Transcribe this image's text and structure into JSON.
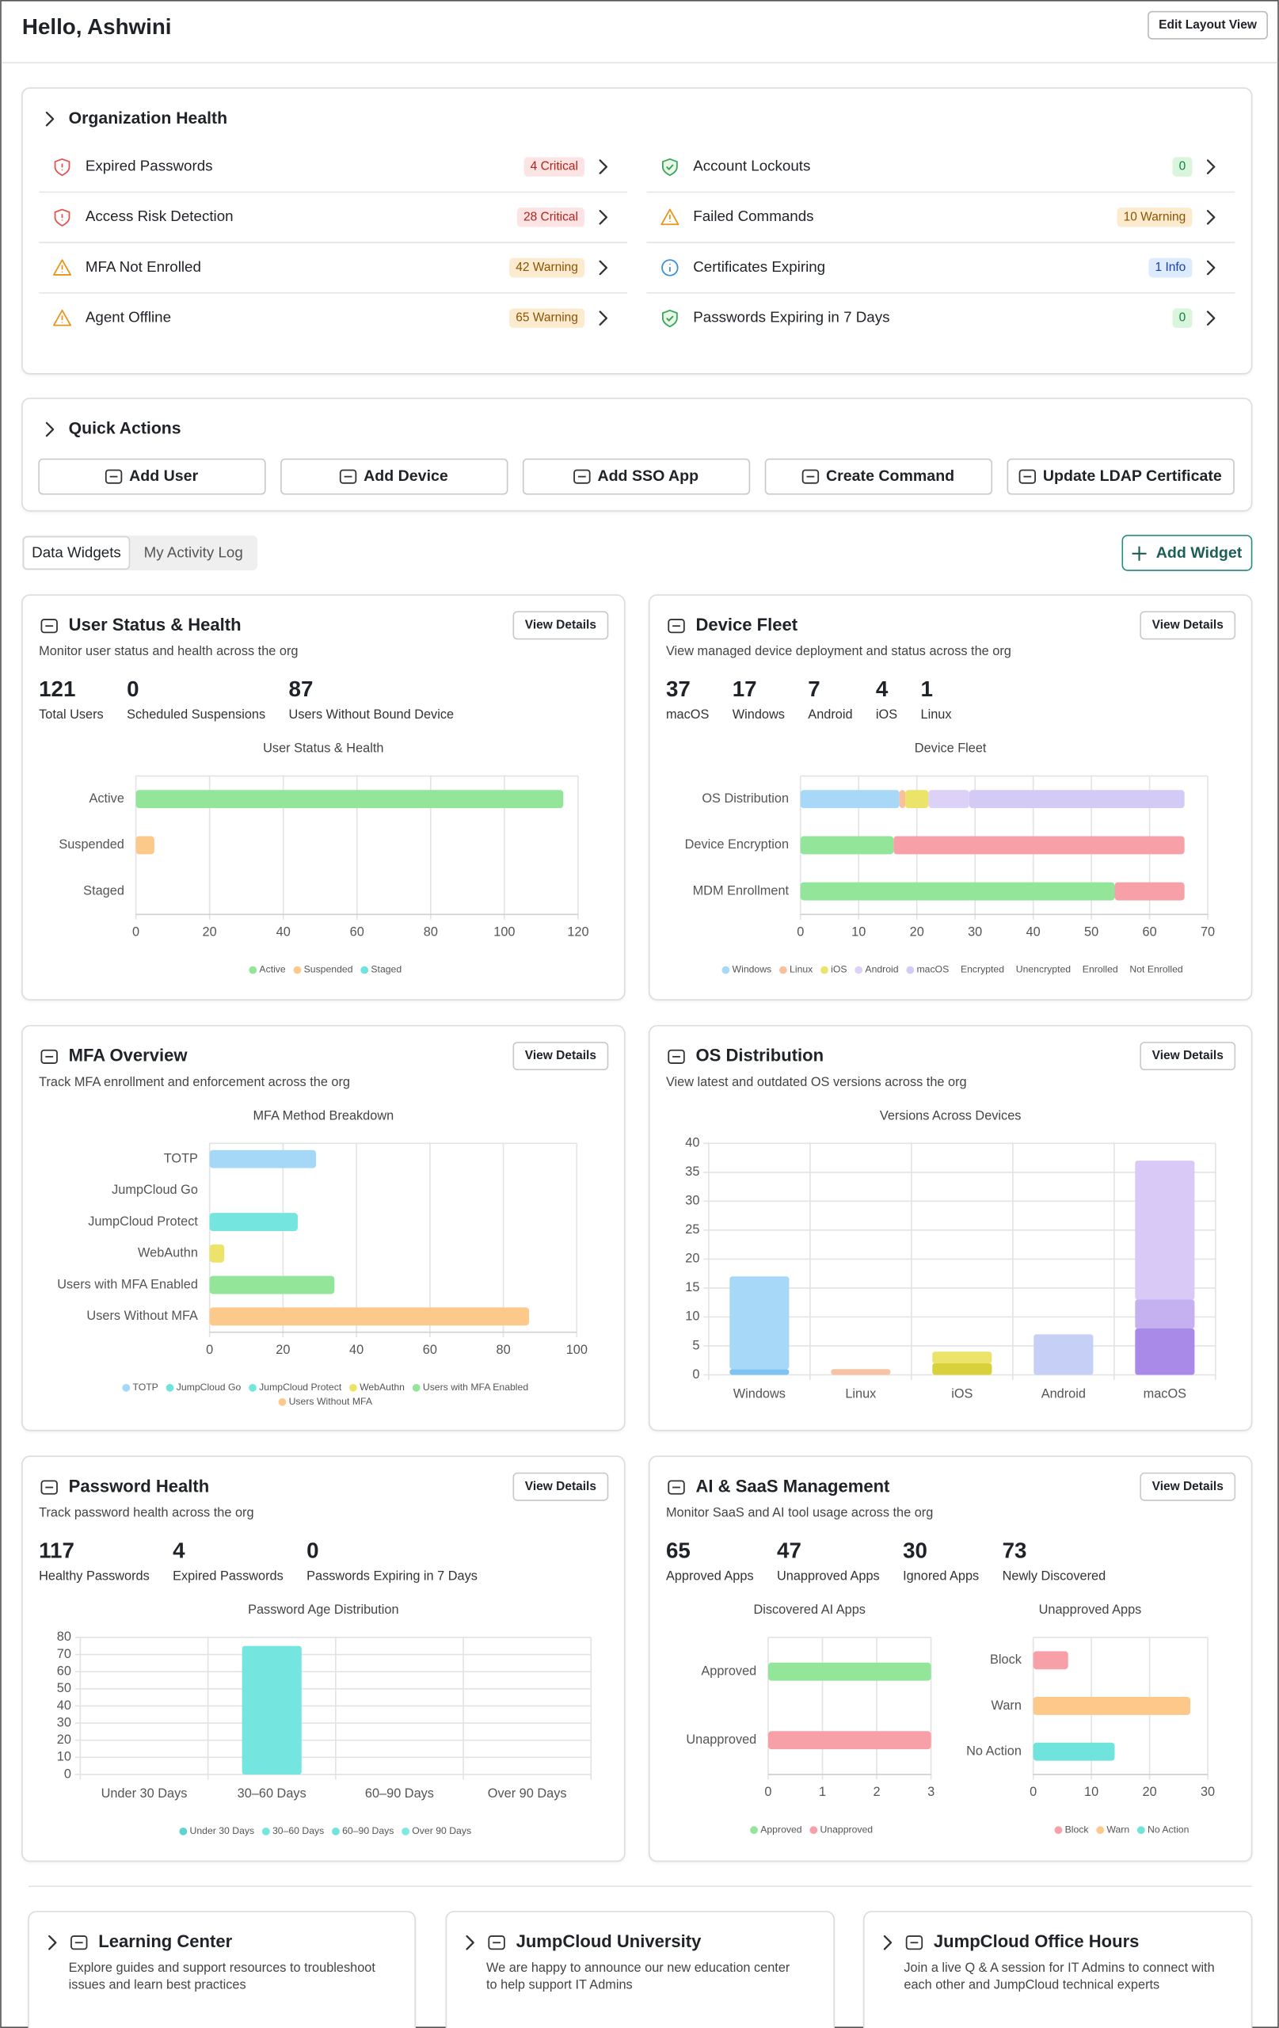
{
  "header": {
    "title": "Hello, Ashwini",
    "button": "Edit Layout View"
  },
  "organization_health": {
    "title": "Organization Health",
    "items": [
      {
        "label": "Expired Passwords",
        "badge": "4 Critical",
        "status": "critical"
      },
      {
        "label": "Access Risk Detection",
        "badge": "28 Critical",
        "status": "critical"
      },
      {
        "label": "MFA Not Enrolled",
        "badge": "42 Warning",
        "status": "warning"
      },
      {
        "label": "Agent Offline",
        "badge": "65 Warning",
        "status": "warning"
      },
      {
        "label": "Account Lockouts",
        "badge": "0",
        "status": "success"
      },
      {
        "label": "Failed Commands",
        "badge": "10 Warning",
        "status": "warning"
      },
      {
        "label": "Certificates Expiring",
        "badge": "1 Info",
        "status": "info"
      },
      {
        "label": "Passwords Expiring in 7 Days",
        "badge": "0",
        "status": "success"
      }
    ]
  },
  "quick_actions": {
    "title": "Quick Actions",
    "buttons": [
      "Add User",
      "Add Device",
      "Add SSO App",
      "Create Command",
      "Update LDAP Certificate"
    ]
  },
  "tabs": {
    "items": [
      "Data Widgets",
      "My Activity Log"
    ],
    "active": 0,
    "button": "Add Widget"
  },
  "widgets": [
    {
      "title": "User Status & Health",
      "subtitle": "Monitor user status and health across the org",
      "button": "View Details",
      "stats": [
        {
          "value": 121,
          "label": "Total Users"
        },
        {
          "value": 0,
          "label": "Scheduled Suspensions"
        },
        {
          "value": 87,
          "label": "Users Without Bound Device"
        }
      ],
      "charts": [
        {
          "type": "bar",
          "orientation": "horizontal",
          "stacked": true,
          "title": "User Status & Health",
          "categories": [
            "Active",
            "Suspended",
            "Staged"
          ],
          "series": [
            {
              "name": "Active",
              "color": "#93e59a",
              "values": [
                116,
                null,
                null
              ]
            },
            {
              "name": "Suspended",
              "color": "#fdc98b",
              "values": [
                null,
                5,
                null
              ]
            },
            {
              "name": "Staged",
              "color": "#6fe3dc",
              "values": [
                null,
                null,
                0
              ]
            }
          ],
          "xlim": [
            0,
            120
          ],
          "xticks": [
            0,
            20,
            40,
            60,
            80,
            100,
            120
          ],
          "grid": true,
          "legend": "bottom"
        }
      ]
    },
    {
      "title": "Device Fleet",
      "subtitle": "View managed device deployment and status across the org",
      "button": "View Details",
      "stats": [
        {
          "value": 37,
          "label": "macOS"
        },
        {
          "value": 17,
          "label": "Windows"
        },
        {
          "value": 7,
          "label": "Android"
        },
        {
          "value": 4,
          "label": "iOS"
        },
        {
          "value": 1,
          "label": "Linux"
        }
      ],
      "charts": [
        {
          "type": "bar",
          "orientation": "horizontal",
          "stacked": true,
          "title": "Device Fleet",
          "categories": [
            "OS Distribution",
            "Device Encryption",
            "MDM Enrollment"
          ],
          "series": [
            {
              "name": "Windows",
              "color": "#a8d8f8",
              "values": [
                17,
                null,
                null
              ]
            },
            {
              "name": "Linux",
              "color": "#f9c09a",
              "values": [
                1,
                null,
                null
              ]
            },
            {
              "name": "iOS",
              "color": "#ece46a",
              "values": [
                4,
                null,
                null
              ]
            },
            {
              "name": "Android",
              "color": "#dcd2f8",
              "values": [
                7,
                null,
                null
              ]
            },
            {
              "name": "macOS",
              "color": "#d3cbf6",
              "values": [
                37,
                null,
                null
              ]
            },
            {
              "name": "Encrypted",
              "color": "#93e59a",
              "values": [
                null,
                16,
                null
              ],
              "legend_marker": false
            },
            {
              "name": "Unencrypted",
              "color": "#f8a0a8",
              "values": [
                null,
                50,
                null
              ],
              "legend_marker": false
            },
            {
              "name": "Enrolled",
              "color": "#93e59a",
              "values": [
                null,
                null,
                54
              ],
              "legend_marker": false
            },
            {
              "name": "Not Enrolled",
              "color": "#f8a0a8",
              "values": [
                null,
                null,
                12
              ],
              "legend_marker": false
            }
          ],
          "xlim": [
            0,
            70
          ],
          "xticks": [
            0,
            10,
            20,
            30,
            40,
            50,
            60,
            70
          ],
          "grid": true,
          "legend": "bottom"
        }
      ]
    },
    {
      "title": "MFA Overview",
      "subtitle": "Track MFA enrollment and enforcement across the org",
      "button": "View Details",
      "charts": [
        {
          "type": "bar",
          "orientation": "horizontal",
          "stacked": true,
          "title": "MFA Method Breakdown",
          "categories": [
            "TOTP",
            "JumpCloud Go",
            "JumpCloud Protect",
            "WebAuthn",
            "Users with MFA Enabled",
            "Users Without MFA"
          ],
          "series": [
            {
              "name": "TOTP",
              "color": "#a5d8f7",
              "values": [
                29,
                null,
                null,
                null,
                null,
                null
              ]
            },
            {
              "name": "JumpCloud Go",
              "color": "#6fe3dc",
              "values": [
                null,
                0,
                null,
                null,
                null,
                null
              ]
            },
            {
              "name": "JumpCloud Protect",
              "color": "#74e5df",
              "values": [
                null,
                null,
                24,
                null,
                null,
                null
              ]
            },
            {
              "name": "WebAuthn",
              "color": "#ece46a",
              "values": [
                null,
                null,
                null,
                4,
                null,
                null
              ]
            },
            {
              "name": "Users with MFA Enabled",
              "color": "#93e59a",
              "values": [
                null,
                null,
                null,
                null,
                34,
                null
              ]
            },
            {
              "name": "Users Without MFA",
              "color": "#fdc98b",
              "values": [
                null,
                null,
                null,
                null,
                null,
                87
              ]
            }
          ],
          "xlim": [
            0,
            100
          ],
          "xticks": [
            0,
            20,
            40,
            60,
            80,
            100
          ],
          "grid": true,
          "legend": "bottom"
        }
      ]
    },
    {
      "title": "OS Distribution",
      "subtitle": "View latest and outdated OS versions across the org",
      "button": "View Details",
      "charts": [
        {
          "type": "bar",
          "orientation": "vertical",
          "stacked": true,
          "title": "Versions Across Devices",
          "categories": [
            "Windows",
            "Linux",
            "iOS",
            "Android",
            "macOS"
          ],
          "series": [
            {
              "colors": [
                "#7fc3f0",
                "#f7c3a6",
                "#d9d13a",
                "#c6cff6",
                "#a98ae8"
              ],
              "values": [
                1,
                1,
                2,
                7,
                8
              ]
            },
            {
              "colors": [
                "#a8d8f8",
                "#f7c3a6",
                "#ece46a",
                "#c6cff6",
                "#c5b0f0"
              ],
              "values": [
                16,
                null,
                2,
                null,
                5
              ]
            },
            {
              "colors": [
                "#a8d8f8",
                "#f7c3a6",
                "#ece46a",
                "#c6cff6",
                "#d9c9f7"
              ],
              "values": [
                null,
                null,
                null,
                null,
                24
              ]
            }
          ],
          "ylim": [
            0,
            40
          ],
          "yticks": [
            0,
            5,
            10,
            15,
            20,
            25,
            30,
            35,
            40
          ],
          "grid": true
        }
      ]
    },
    {
      "title": "Password Health",
      "subtitle": "Track password health across the org",
      "button": "View Details",
      "stats": [
        {
          "value": 117,
          "label": "Healthy Passwords"
        },
        {
          "value": 4,
          "label": "Expired Passwords"
        },
        {
          "value": 0,
          "label": "Passwords Expiring in 7 Days"
        }
      ],
      "charts": [
        {
          "type": "bar",
          "orientation": "vertical",
          "stacked": true,
          "title": "Password Age Distribution",
          "categories": [
            "Under 30 Days",
            "30–60 Days",
            "60–90 Days",
            "Over 90 Days"
          ],
          "series": [
            {
              "name": "Under 30 Days",
              "color": "#5fd3cf",
              "values": [
                0,
                null,
                null,
                null
              ]
            },
            {
              "name": "30–60 Days",
              "color": "#74e5df",
              "values": [
                null,
                75,
                null,
                null
              ]
            },
            {
              "name": "60–90 Days",
              "color": "#6fe3dc",
              "values": [
                null,
                null,
                0,
                null
              ]
            },
            {
              "name": "Over 90 Days",
              "color": "#7ee8e2",
              "values": [
                null,
                null,
                null,
                0
              ]
            }
          ],
          "ylim": [
            0,
            80
          ],
          "yticks": [
            0,
            10,
            20,
            30,
            40,
            50,
            60,
            70,
            80
          ],
          "grid": true,
          "legend": "bottom"
        }
      ]
    },
    {
      "title": "AI & SaaS Management",
      "subtitle": "Monitor SaaS and AI tool usage across the org",
      "button": "View Details",
      "stats": [
        {
          "value": 65,
          "label": "Approved Apps"
        },
        {
          "value": 47,
          "label": "Unapproved Apps"
        },
        {
          "value": 30,
          "label": "Ignored Apps"
        },
        {
          "value": 73,
          "label": "Newly Discovered"
        }
      ],
      "charts": [
        {
          "type": "bar",
          "orientation": "horizontal",
          "stacked": true,
          "title": "Discovered AI Apps",
          "categories": [
            "Approved",
            "Unapproved"
          ],
          "series": [
            {
              "name": "Approved",
              "color": "#93e59a",
              "values": [
                3,
                null
              ]
            },
            {
              "name": "Unapproved",
              "color": "#f8a0a8",
              "values": [
                null,
                3
              ]
            }
          ],
          "xlim": [
            0,
            3
          ],
          "xticks": [
            0,
            1,
            2,
            3
          ],
          "grid": true,
          "legend": "bottom"
        },
        {
          "type": "bar",
          "orientation": "horizontal",
          "stacked": true,
          "title": "Unapproved Apps",
          "categories": [
            "Block",
            "Warn",
            "No Action"
          ],
          "series": [
            {
              "name": "Block",
              "color": "#f8a0a8",
              "values": [
                6,
                null,
                null
              ]
            },
            {
              "name": "Warn",
              "color": "#fdc98b",
              "values": [
                null,
                27,
                null
              ]
            },
            {
              "name": "No Action",
              "color": "#6fe3dc",
              "values": [
                null,
                null,
                14
              ]
            }
          ],
          "xlim": [
            0,
            30
          ],
          "xticks": [
            0,
            10,
            20,
            30
          ],
          "grid": true,
          "legend": "bottom"
        }
      ]
    }
  ],
  "resources": [
    {
      "title": "Learning Center",
      "description": [
        "Explore guides and support resources to troubleshoot",
        "issues and learn best practices"
      ]
    },
    {
      "title": "JumpCloud University",
      "description": [
        "We are happy to announce our new education center",
        "to help support IT Admins"
      ]
    },
    {
      "title": "JumpCloud Office Hours",
      "description": [
        "Join a live Q & A session for IT Admins to connect with",
        "each other and JumpCloud technical experts"
      ]
    }
  ]
}
